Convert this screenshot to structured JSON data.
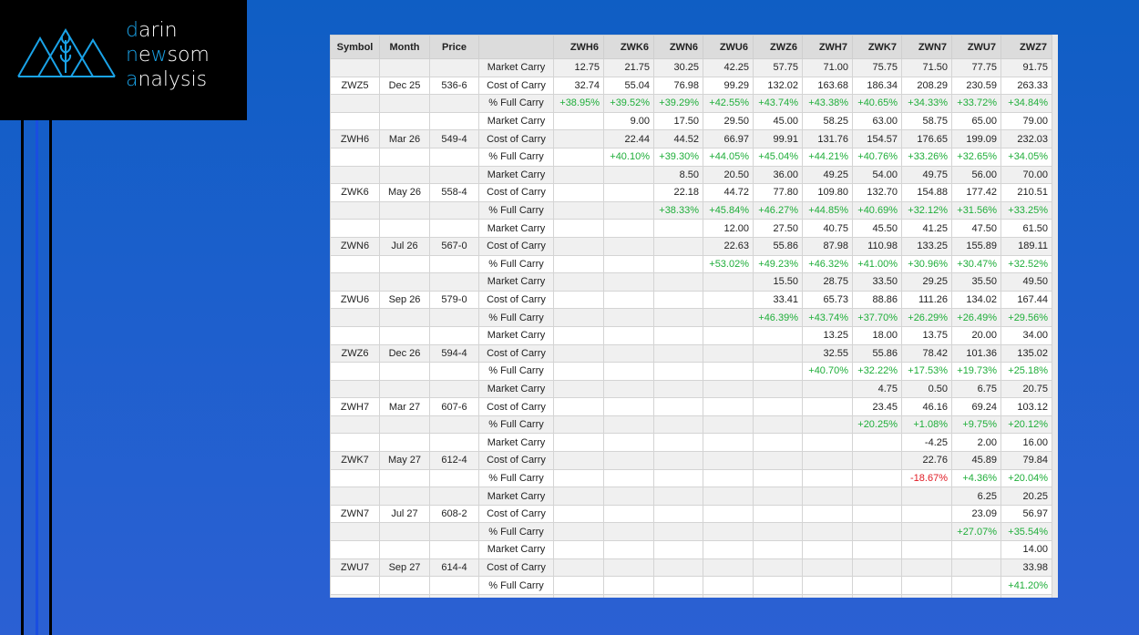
{
  "logo": {
    "line1_hl": "d",
    "line1": "arin",
    "line2_a": "n",
    "line2_b": "e",
    "line2_hl": "w",
    "line2_c": "som",
    "line3_hl": "a",
    "line3": "nalysis"
  },
  "colors": {
    "positive": "#1fae3a",
    "negative": "#e01b24",
    "header_bg": "#dcdcdc",
    "stripe": "#f0f0f0"
  },
  "table": {
    "headers": [
      "Symbol",
      "Month",
      "Price",
      "",
      "ZWH6",
      "ZWK6",
      "ZWN6",
      "ZWU6",
      "ZWZ6",
      "ZWH7",
      "ZWK7",
      "ZWN7",
      "ZWU7",
      "ZWZ7"
    ],
    "row_labels": [
      "Market Carry",
      "Cost of Carry",
      "% Full Carry"
    ],
    "groups": [
      {
        "symbol": "ZWZ5",
        "month": "Dec 25",
        "price": "536-6",
        "market": [
          "12.75",
          "21.75",
          "30.25",
          "42.25",
          "57.75",
          "71.00",
          "75.75",
          "71.50",
          "77.75",
          "91.75"
        ],
        "cost": [
          "32.74",
          "55.04",
          "76.98",
          "99.29",
          "132.02",
          "163.68",
          "186.34",
          "208.29",
          "230.59",
          "263.33"
        ],
        "pct": [
          "+38.95%",
          "+39.52%",
          "+39.29%",
          "+42.55%",
          "+43.74%",
          "+43.38%",
          "+40.65%",
          "+34.33%",
          "+33.72%",
          "+34.84%"
        ]
      },
      {
        "symbol": "ZWH6",
        "month": "Mar 26",
        "price": "549-4",
        "market": [
          null,
          "9.00",
          "17.50",
          "29.50",
          "45.00",
          "58.25",
          "63.00",
          "58.75",
          "65.00",
          "79.00"
        ],
        "cost": [
          null,
          "22.44",
          "44.52",
          "66.97",
          "99.91",
          "131.76",
          "154.57",
          "176.65",
          "199.09",
          "232.03"
        ],
        "pct": [
          null,
          "+40.10%",
          "+39.30%",
          "+44.05%",
          "+45.04%",
          "+44.21%",
          "+40.76%",
          "+33.26%",
          "+32.65%",
          "+34.05%"
        ]
      },
      {
        "symbol": "ZWK6",
        "month": "May 26",
        "price": "558-4",
        "market": [
          null,
          null,
          "8.50",
          "20.50",
          "36.00",
          "49.25",
          "54.00",
          "49.75",
          "56.00",
          "70.00"
        ],
        "cost": [
          null,
          null,
          "22.18",
          "44.72",
          "77.80",
          "109.80",
          "132.70",
          "154.88",
          "177.42",
          "210.51"
        ],
        "pct": [
          null,
          null,
          "+38.33%",
          "+45.84%",
          "+46.27%",
          "+44.85%",
          "+40.69%",
          "+32.12%",
          "+31.56%",
          "+33.25%"
        ]
      },
      {
        "symbol": "ZWN6",
        "month": "Jul 26",
        "price": "567-0",
        "market": [
          null,
          null,
          null,
          "12.00",
          "27.50",
          "40.75",
          "45.50",
          "41.25",
          "47.50",
          "61.50"
        ],
        "cost": [
          null,
          null,
          null,
          "22.63",
          "55.86",
          "87.98",
          "110.98",
          "133.25",
          "155.89",
          "189.11"
        ],
        "pct": [
          null,
          null,
          null,
          "+53.02%",
          "+49.23%",
          "+46.32%",
          "+41.00%",
          "+30.96%",
          "+30.47%",
          "+32.52%"
        ]
      },
      {
        "symbol": "ZWU6",
        "month": "Sep 26",
        "price": "579-0",
        "market": [
          null,
          null,
          null,
          null,
          "15.50",
          "28.75",
          "33.50",
          "29.25",
          "35.50",
          "49.50"
        ],
        "cost": [
          null,
          null,
          null,
          null,
          "33.41",
          "65.73",
          "88.86",
          "111.26",
          "134.02",
          "167.44"
        ],
        "pct": [
          null,
          null,
          null,
          null,
          "+46.39%",
          "+43.74%",
          "+37.70%",
          "+26.29%",
          "+26.49%",
          "+29.56%"
        ]
      },
      {
        "symbol": "ZWZ6",
        "month": "Dec 26",
        "price": "594-4",
        "market": [
          null,
          null,
          null,
          null,
          null,
          "13.25",
          "18.00",
          "13.75",
          "20.00",
          "34.00"
        ],
        "cost": [
          null,
          null,
          null,
          null,
          null,
          "32.55",
          "55.86",
          "78.42",
          "101.36",
          "135.02"
        ],
        "pct": [
          null,
          null,
          null,
          null,
          null,
          "+40.70%",
          "+32.22%",
          "+17.53%",
          "+19.73%",
          "+25.18%"
        ]
      },
      {
        "symbol": "ZWH7",
        "month": "Mar 27",
        "price": "607-6",
        "market": [
          null,
          null,
          null,
          null,
          null,
          null,
          "4.75",
          "0.50",
          "6.75",
          "20.75"
        ],
        "cost": [
          null,
          null,
          null,
          null,
          null,
          null,
          "23.45",
          "46.16",
          "69.24",
          "103.12"
        ],
        "pct": [
          null,
          null,
          null,
          null,
          null,
          null,
          "+20.25%",
          "+1.08%",
          "+9.75%",
          "+20.12%"
        ]
      },
      {
        "symbol": "ZWK7",
        "month": "May 27",
        "price": "612-4",
        "market": [
          null,
          null,
          null,
          null,
          null,
          null,
          null,
          "-4.25",
          "2.00",
          "16.00"
        ],
        "cost": [
          null,
          null,
          null,
          null,
          null,
          null,
          null,
          "22.76",
          "45.89",
          "79.84"
        ],
        "pct": [
          null,
          null,
          null,
          null,
          null,
          null,
          null,
          "-18.67%",
          "+4.36%",
          "+20.04%"
        ]
      },
      {
        "symbol": "ZWN7",
        "month": "Jul 27",
        "price": "608-2",
        "market": [
          null,
          null,
          null,
          null,
          null,
          null,
          null,
          null,
          "6.25",
          "20.25"
        ],
        "cost": [
          null,
          null,
          null,
          null,
          null,
          null,
          null,
          null,
          "23.09",
          "56.97"
        ],
        "pct": [
          null,
          null,
          null,
          null,
          null,
          null,
          null,
          null,
          "+27.07%",
          "+35.54%"
        ]
      },
      {
        "symbol": "ZWU7",
        "month": "Sep 27",
        "price": "614-4",
        "market": [
          null,
          null,
          null,
          null,
          null,
          null,
          null,
          null,
          null,
          "14.00"
        ],
        "cost": [
          null,
          null,
          null,
          null,
          null,
          null,
          null,
          null,
          null,
          "33.98"
        ],
        "pct": [
          null,
          null,
          null,
          null,
          null,
          null,
          null,
          null,
          null,
          "+41.20%"
        ]
      }
    ]
  }
}
